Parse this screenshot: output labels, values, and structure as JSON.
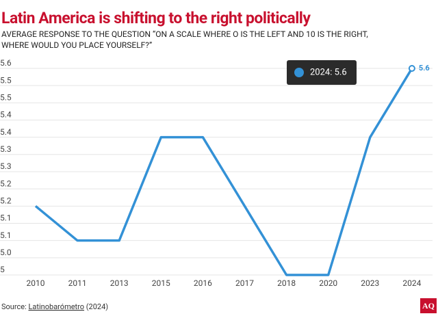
{
  "chart_data": {
    "type": "line",
    "title": "Latin America is shifting to the right politically",
    "subtitle": [
      "AVERAGE RESPONSE TO THE QUESTION “ON A SCALE WHERE O IS THE LEFT AND 10 IS THE RIGHT,",
      "WHERE WOULD YOU PLACE YOURSELF?”"
    ],
    "categories": [
      "2010",
      "2011",
      "2013",
      "2015",
      "2016",
      "2017",
      "2018",
      "2020",
      "2023",
      "2024"
    ],
    "series": [
      {
        "name": "2024",
        "color": "#3391d6",
        "values": [
          5.2,
          5.1,
          5.1,
          5.4,
          5.4,
          5.2,
          5.0,
          5.0,
          5.4,
          5.6
        ]
      }
    ],
    "ylim": [
      5.0,
      5.6
    ],
    "yticks": [
      5.0,
      {
        "value": 5.05,
        "label": "5.0"
      },
      5.1,
      {
        "value": 5.15,
        "label": "5.1"
      },
      5.2,
      {
        "value": 5.25,
        "label": "5.2"
      },
      5.3,
      {
        "value": 5.35,
        "label": "5.3"
      },
      5.4,
      {
        "value": 5.45,
        "label": "5.4"
      },
      5.5,
      {
        "value": 5.55,
        "label": "5.5"
      },
      5.6
    ],
    "grid": true,
    "data_label": {
      "index": 9,
      "text": "5.6"
    },
    "tooltip": "2024: 5.6",
    "source": {
      "prefix": "Source: ",
      "link": "Latinobarómetro",
      "suffix": " (2024)"
    },
    "logo": "AQ"
  }
}
